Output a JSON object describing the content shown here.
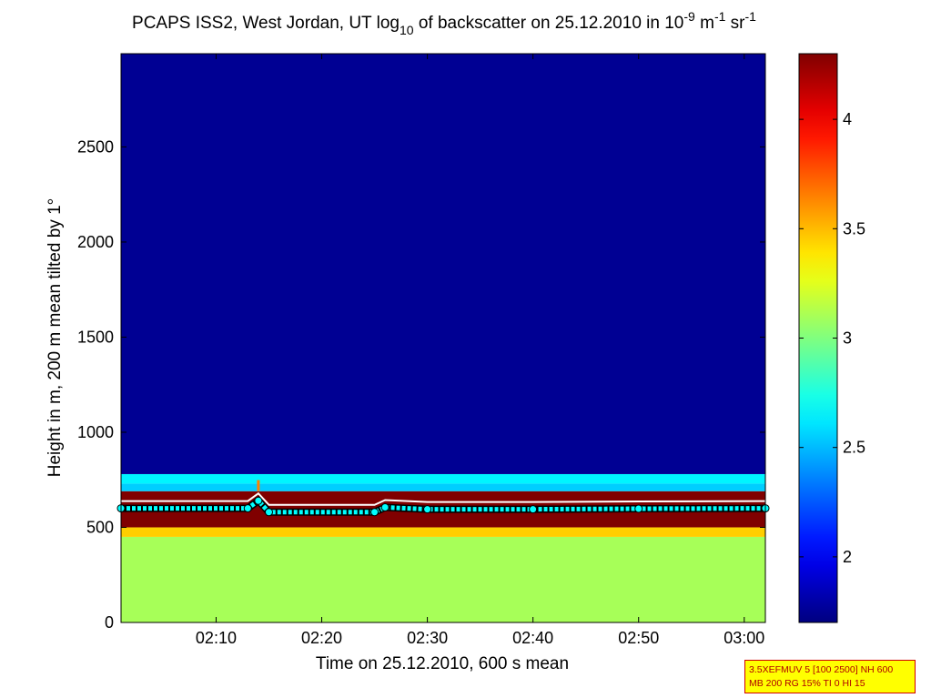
{
  "chart_data": {
    "type": "heatmap",
    "title": {
      "prefix": "PCAPS ISS2, West Jordan, UT log",
      "log_base": "10",
      "middle": " of backscatter on 25.12.2010 in 10",
      "exp1": "-9",
      "unit_m": " m",
      "exp2": "-1",
      "unit_sr": " sr",
      "exp3": "-1"
    },
    "xlabel": "Time on 25.12.2010, 600 s mean",
    "ylabel": "Height in m, 200 m mean tilted by 1°",
    "xlim": [
      "02:01",
      "03:02"
    ],
    "ylim": [
      0,
      2990
    ],
    "x_ticks": [
      "02:10",
      "02:20",
      "02:30",
      "02:40",
      "02:50",
      "03:00"
    ],
    "y_ticks": [
      0,
      500,
      1000,
      1500,
      2000,
      2500
    ],
    "colorbar": {
      "colormap": "jet",
      "range": [
        1.7,
        4.3
      ],
      "ticks": [
        "2",
        "2.5",
        "3",
        "3.5",
        "4"
      ]
    },
    "layers": [
      {
        "from_m": 0,
        "to_m": 450,
        "value": 3.1
      },
      {
        "from_m": 450,
        "to_m": 500,
        "value": 3.45
      },
      {
        "from_m": 500,
        "to_m": 690,
        "value": 4.3
      },
      {
        "from_m": 690,
        "to_m": 730,
        "value": 2.55
      },
      {
        "from_m": 730,
        "to_m": 780,
        "value": 2.65
      },
      {
        "from_m": 780,
        "to_m": 2990,
        "value": 1.75
      }
    ],
    "aerosol_layer_height_m": [
      {
        "time": "02:01",
        "value": 600
      },
      {
        "time": "02:13",
        "value": 600
      },
      {
        "time": "02:14",
        "value": 640
      },
      {
        "time": "02:15",
        "value": 580
      },
      {
        "time": "02:25",
        "value": 580
      },
      {
        "time": "02:26",
        "value": 605
      },
      {
        "time": "02:30",
        "value": 595
      },
      {
        "time": "02:40",
        "value": 595
      },
      {
        "time": "02:50",
        "value": 598
      },
      {
        "time": "03:02",
        "value": 600
      }
    ],
    "cloud_marker": {
      "time": "02:14",
      "height_m": 720
    }
  },
  "info_box": {
    "line1": "3.5XEFMUV 5 [100 2500] NH 600",
    "line2": "MB 200 RG 15% TI 0 HI 15"
  }
}
